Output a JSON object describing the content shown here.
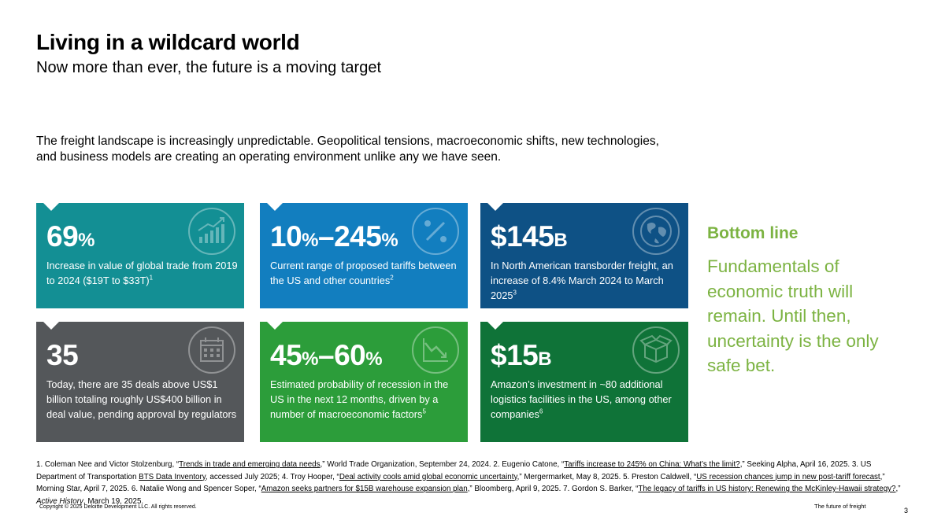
{
  "header": {
    "title": "Living in a wildcard world",
    "subtitle": "Now more than ever, the future is a moving target"
  },
  "intro_line1": "The freight landscape is increasingly unpredictable. Geopolitical tensions, macroeconomic shifts, new technologies,",
  "intro_line2": "and business models are creating an operating environment unlike any we have seen.",
  "tiles": [
    {
      "value": "69",
      "unit": "%",
      "desc": "Increase in value of global trade from 2019 to 2024 ($19T to $33T)",
      "ref": "1",
      "icon": "bar-chart-up-icon",
      "color": "#138f94"
    },
    {
      "value_a": "10",
      "unit_a": "%",
      "dash": "–",
      "value_b": "245",
      "unit_b": "%",
      "desc": "Current range of proposed tariffs between the US and other countries",
      "ref": "2",
      "icon": "percent-icon",
      "color": "#127ebf"
    },
    {
      "value": "$145",
      "unit": "B",
      "desc": "In North American transborder freight, an increase of 8.4% March 2024 to March 2025",
      "ref": "3",
      "icon": "globe-icon",
      "color": "#0e5185"
    },
    {
      "value": "35",
      "unit": "",
      "desc": "Today, there are 35 deals above US$1 billion totaling roughly US$400 billion in deal value, pending approval by regulators",
      "ref": "",
      "icon": "calendar-icon",
      "color": "#54575a"
    },
    {
      "value_a": "45",
      "unit_a": "%",
      "dash": "–",
      "value_b": "60",
      "unit_b": "%",
      "desc": "Estimated probability of recession in the US in the next 12 months, driven by a number of macroeconomic factors",
      "ref": "5",
      "icon": "line-chart-down-icon",
      "color": "#2c9d3a"
    },
    {
      "value": "$15",
      "unit": "B",
      "desc": "Amazon’s investment in ~80 additional logistics facilities in the US, among other companies",
      "ref": "6",
      "icon": "package-box-icon",
      "color": "#0f7338"
    }
  ],
  "bottom_line": {
    "heading": "Bottom line",
    "text": "Fundamentals of economic truth will remain. Until then, uncertainty is the only safe bet."
  },
  "footnotes": {
    "f1_pre": "1. Coleman Nee and Victor Stolzenburg, “",
    "f1_link": "Trends in trade and emerging data needs",
    "f1_post": ",” World Trade Organization, September 24, 2024. 2. Eugenio Catone, “",
    "f2_link": "Tariffs increase to 245% on China: What’s the limit?",
    "f2_post": ",” Seeking Alpha, April 16, 2025. 3. US Department of Transportation ",
    "f3_link": "BTS Data Inventory",
    "f3_post": ", accessed July 2025; 4. Troy Hooper, “",
    "f4_link": "Deal activity cools amid global economic uncertainty",
    "f4_post": ",” Mergermarket, May 8, 2025. 5. Preston Caldwell, “",
    "f5_link": "US recession chances jump in new post-tariff forecast",
    "f5_post": ",” Morning Star, April 7, 2025. 6. Natalie Wong and Spencer Soper, “",
    "f6_link": "Amazon seeks partners for $15B warehouse expansion plan",
    "f6_post": ",” Bloomberg, April 9, 2025. 7. Gordon S. Barker, “",
    "f7_link": "The legacy of tariffs in US history: Renewing the McKinley-Hawaii strategy?",
    "f7_post": ",” ",
    "f7_journal": "Active History",
    "f7_end": ", March 19, 2025."
  },
  "footer": {
    "copyright": "Copyright © 2025 Deloitte Development LLC. All rights reserved.",
    "deck_title": "The future of freight",
    "page_number": "3"
  }
}
